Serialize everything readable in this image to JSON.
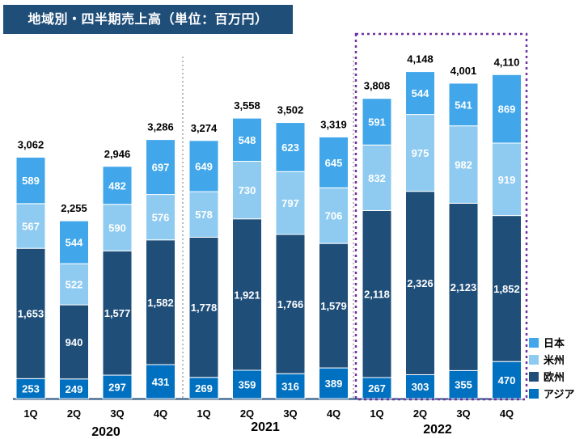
{
  "title": "地域別・四半期売上高（単位：百万円）",
  "chart_data": {
    "type": "bar",
    "stacked": true,
    "categories": [
      "1Q",
      "2Q",
      "3Q",
      "4Q",
      "1Q",
      "2Q",
      "3Q",
      "4Q",
      "1Q",
      "2Q",
      "3Q",
      "4Q"
    ],
    "years": [
      {
        "label": "2020",
        "quarters": [
          "1Q",
          "2Q",
          "3Q",
          "4Q"
        ]
      },
      {
        "label": "2021",
        "quarters": [
          "1Q",
          "2Q",
          "3Q",
          "4Q"
        ]
      },
      {
        "label": "2022",
        "quarters": [
          "1Q",
          "2Q",
          "3Q",
          "4Q"
        ]
      }
    ],
    "series": [
      {
        "name": "アジア",
        "color": "#0070c0",
        "values": [
          253,
          249,
          297,
          431,
          269,
          359,
          316,
          389,
          267,
          303,
          355,
          470
        ]
      },
      {
        "name": "欧州",
        "color": "#1f4e79",
        "values": [
          1653,
          940,
          1577,
          1582,
          1778,
          1921,
          1766,
          1579,
          2118,
          2326,
          2123,
          1852
        ]
      },
      {
        "name": "米州",
        "color": "#8fcbf0",
        "values": [
          567,
          522,
          590,
          576,
          578,
          730,
          797,
          706,
          832,
          975,
          982,
          919
        ]
      },
      {
        "name": "日本",
        "color": "#41a7ea",
        "values": [
          589,
          544,
          482,
          697,
          649,
          548,
          623,
          645,
          591,
          544,
          541,
          869
        ]
      }
    ],
    "totals": [
      "3,062",
      "2,255",
      "2,946",
      "3,286",
      "3,274",
      "3,558",
      "3,502",
      "3,319",
      "3,808",
      "4,148",
      "4,001",
      "4,110"
    ],
    "highlight_year": "2022",
    "highlight_color": "#7030a0",
    "legend_order": [
      "日本",
      "米州",
      "欧州",
      "アジア"
    ],
    "legend_position": "bottom-right"
  }
}
